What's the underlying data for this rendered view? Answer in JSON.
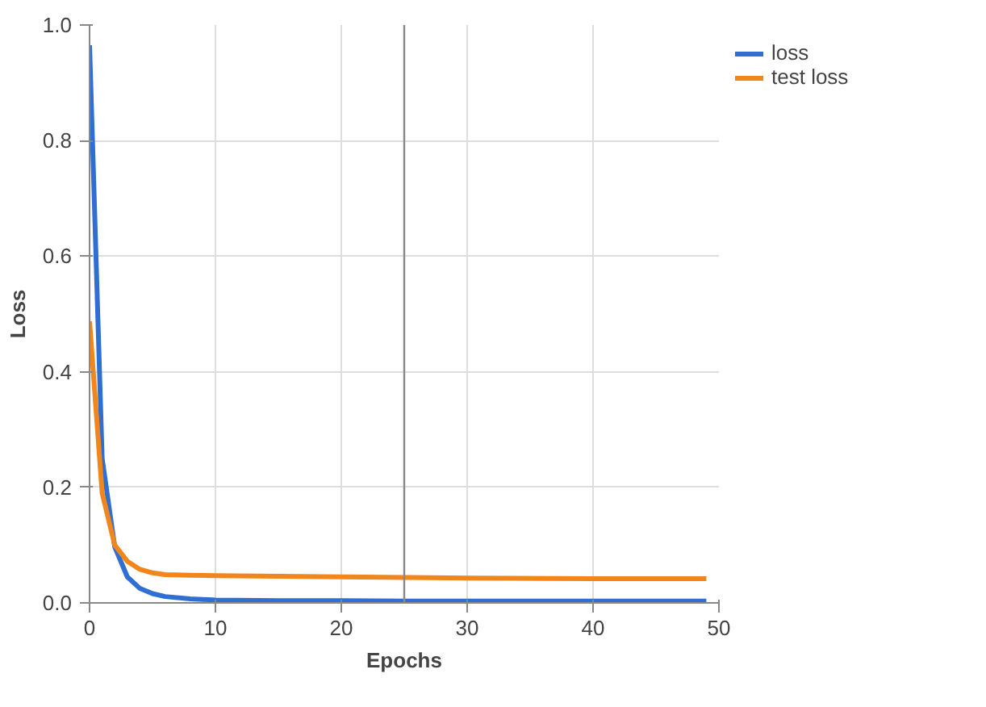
{
  "chart_data": {
    "type": "line",
    "xlabel": "Epochs",
    "ylabel": "Loss",
    "xlim": [
      0,
      50
    ],
    "ylim": [
      0,
      1
    ],
    "xticks": [
      0,
      10,
      20,
      30,
      40,
      50
    ],
    "yticks": [
      {
        "value": 0,
        "label": "0.0"
      },
      0.2,
      0.4,
      0.6,
      0.8,
      {
        "value": 1,
        "label": "1.0"
      }
    ],
    "x": [
      0,
      1,
      2,
      3,
      4,
      5,
      6,
      8,
      10,
      15,
      20,
      25,
      30,
      40,
      49
    ],
    "series": [
      {
        "name": "loss",
        "color": "#2f6fd4",
        "values": [
          0.965,
          0.25,
          0.097,
          0.045,
          0.025,
          0.016,
          0.011,
          0.007,
          0.005,
          0.004,
          0.004,
          0.003,
          0.003,
          0.003,
          0.003
        ]
      },
      {
        "name": "test loss",
        "color": "#f0861c",
        "values": [
          0.487,
          0.19,
          0.1,
          0.072,
          0.058,
          0.052,
          0.049,
          0.048,
          0.047,
          0.046,
          0.045,
          0.044,
          0.043,
          0.042,
          0.042
        ]
      }
    ],
    "ref_lines": [
      {
        "axis": "x",
        "value": 25,
        "label": null,
        "color": "#888888"
      }
    ],
    "grid": true,
    "legend": "top right"
  }
}
